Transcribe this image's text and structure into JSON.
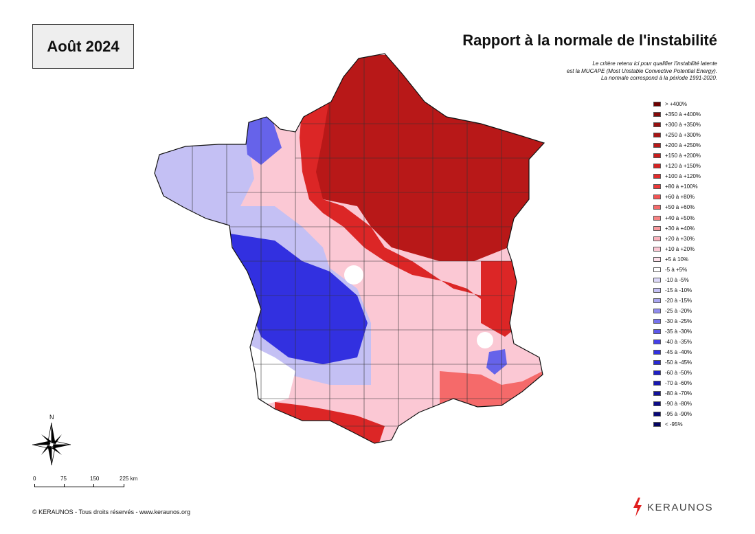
{
  "header": {
    "month": "Août 2024",
    "title": "Rapport à la normale de l'instabilité",
    "subtitle_lines": [
      "Le critère retenu ici pour qualifier l'instabilité latente",
      "est la MUCAPE (Most Unstable Convective Potential Energy).",
      "La normale correspond à la période 1991-2020."
    ]
  },
  "legend": {
    "items": [
      {
        "label": "> +400%",
        "color": "#6e0000"
      },
      {
        "label": "+350 à +400%",
        "color": "#850a0a"
      },
      {
        "label": "+300 à +350%",
        "color": "#961010"
      },
      {
        "label": "+250 à +300%",
        "color": "#a81414"
      },
      {
        "label": "+200 à +250%",
        "color": "#b81818"
      },
      {
        "label": "+150 à +200%",
        "color": "#c81c1c"
      },
      {
        "label": "+120 à +150%",
        "color": "#d62222"
      },
      {
        "label": "+100 à +120%",
        "color": "#e22a2a"
      },
      {
        "label": "+80 à +100%",
        "color": "#ec3838"
      },
      {
        "label": "+60 à +80%",
        "color": "#f25454"
      },
      {
        "label": "+50 à +60%",
        "color": "#f56a6a"
      },
      {
        "label": "+40 à +50%",
        "color": "#f78282"
      },
      {
        "label": "+30 à +40%",
        "color": "#f89a9e"
      },
      {
        "label": "+20 à +30%",
        "color": "#f9b2bc"
      },
      {
        "label": "+10 à +20%",
        "color": "#fbc8d4"
      },
      {
        "label": "+5 à 10%",
        "color": "#fde0ea"
      },
      {
        "label": "-5 à +5%",
        "color": "#ffffff"
      },
      {
        "label": "-10 à -5%",
        "color": "#dcd8f8"
      },
      {
        "label": "-15 à -10%",
        "color": "#c4c0f4"
      },
      {
        "label": "-20 à -15%",
        "color": "#aaa6f0"
      },
      {
        "label": "-25 à -20%",
        "color": "#908cee"
      },
      {
        "label": "-30 à -25%",
        "color": "#7672ec"
      },
      {
        "label": "-35 à -30%",
        "color": "#5c58ea"
      },
      {
        "label": "-40 à -35%",
        "color": "#4440e8"
      },
      {
        "label": "-45 à -40%",
        "color": "#3230e0"
      },
      {
        "label": "-50 à -45%",
        "color": "#2828d4"
      },
      {
        "label": "-60 à -50%",
        "color": "#2020c4"
      },
      {
        "label": "-70 à -60%",
        "color": "#1818b0"
      },
      {
        "label": "-80 à -70%",
        "color": "#12129c"
      },
      {
        "label": "-90 à -80%",
        "color": "#0c0c88"
      },
      {
        "label": "-95 à -90%",
        "color": "#080876"
      },
      {
        "label": "< -95%",
        "color": "#040462"
      }
    ]
  },
  "map": {
    "colors": {
      "dark_red": "#b81818",
      "red": "#dc2626",
      "light_red": "#f56a6a",
      "pink": "#f9b2bc",
      "light_pink": "#fbc8d4",
      "blue": "#3230e0",
      "mid_blue": "#6663ea",
      "light_blue": "#c4c0f4",
      "white": "#ffffff"
    }
  },
  "compass": {
    "north_label": "N"
  },
  "scale": {
    "labels": [
      "0",
      "75",
      "150",
      "225 km"
    ]
  },
  "footer": {
    "copyright": "© KERAUNOS - Tous droits réservés - www.keraunos.org",
    "brand": "KERAUNOS"
  }
}
